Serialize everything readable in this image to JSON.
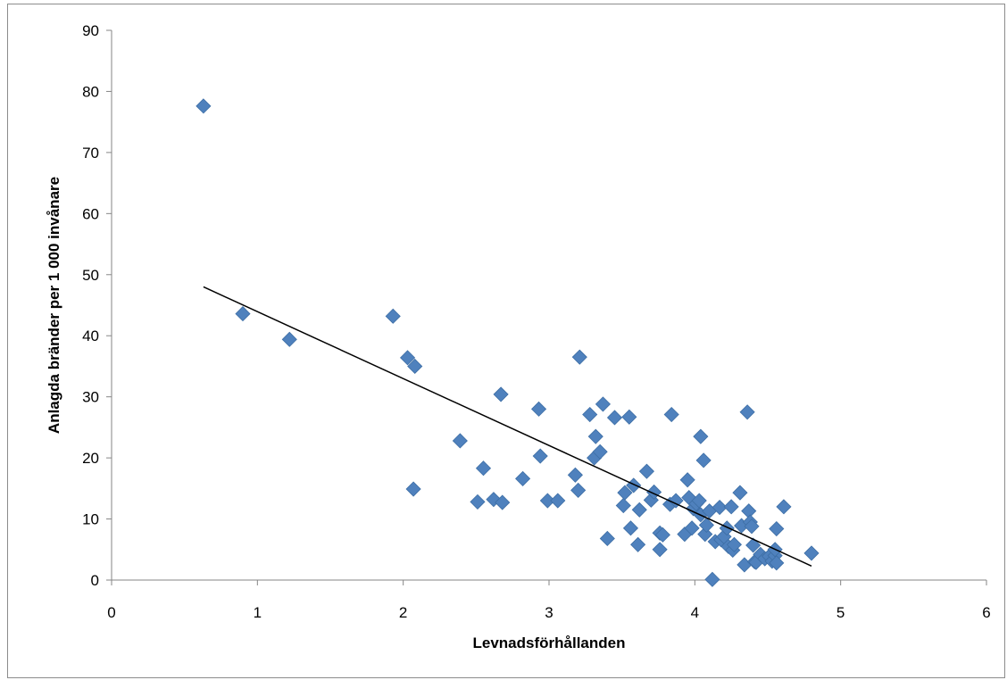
{
  "chart_data": {
    "type": "scatter",
    "title": "",
    "xlabel": "Levnadsförhållanden",
    "ylabel": "Anlagda bränder per 1 000 invånare",
    "xlim": [
      0,
      6
    ],
    "ylim": [
      0,
      90
    ],
    "x_ticks": [
      0,
      1,
      2,
      3,
      4,
      5,
      6
    ],
    "y_ticks": [
      0,
      10,
      20,
      30,
      40,
      50,
      60,
      70,
      80,
      90
    ],
    "grid": false,
    "legend": "none",
    "marker": "diamond",
    "marker_color": "#4f81bd",
    "trendline_color": "#000000",
    "trendline": {
      "type": "linear",
      "x": [
        0.63,
        4.8
      ],
      "y": [
        48.0,
        2.3
      ]
    },
    "series": [
      {
        "points": [
          [
            0.63,
            77.6
          ],
          [
            0.9,
            43.6
          ],
          [
            1.22,
            39.4
          ],
          [
            1.93,
            43.2
          ],
          [
            2.03,
            36.4
          ],
          [
            2.08,
            35.0
          ],
          [
            2.07,
            14.9
          ],
          [
            2.39,
            22.8
          ],
          [
            2.55,
            18.3
          ],
          [
            2.51,
            12.8
          ],
          [
            2.62,
            13.2
          ],
          [
            2.68,
            12.7
          ],
          [
            2.67,
            30.4
          ],
          [
            2.82,
            16.6
          ],
          [
            2.93,
            28.0
          ],
          [
            2.94,
            20.3
          ],
          [
            2.99,
            13.0
          ],
          [
            3.06,
            13.0
          ],
          [
            3.18,
            17.2
          ],
          [
            3.2,
            14.7
          ],
          [
            3.21,
            36.5
          ],
          [
            3.28,
            27.1
          ],
          [
            3.31,
            20.0
          ],
          [
            3.32,
            23.5
          ],
          [
            3.35,
            21.0
          ],
          [
            3.37,
            28.8
          ],
          [
            3.4,
            6.8
          ],
          [
            3.45,
            26.6
          ],
          [
            3.51,
            12.2
          ],
          [
            3.52,
            14.3
          ],
          [
            3.55,
            26.7
          ],
          [
            3.56,
            8.5
          ],
          [
            3.58,
            15.5
          ],
          [
            3.61,
            5.8
          ],
          [
            3.62,
            11.5
          ],
          [
            3.67,
            17.8
          ],
          [
            3.7,
            13.1
          ],
          [
            3.72,
            14.4
          ],
          [
            3.76,
            5.0
          ],
          [
            3.76,
            7.7
          ],
          [
            3.78,
            7.4
          ],
          [
            3.83,
            12.4
          ],
          [
            3.84,
            27.1
          ],
          [
            3.87,
            13.0
          ],
          [
            3.93,
            7.5
          ],
          [
            3.95,
            16.4
          ],
          [
            3.96,
            13.5
          ],
          [
            3.98,
            8.5
          ],
          [
            3.99,
            11.7
          ],
          [
            4.01,
            12.5
          ],
          [
            4.03,
            13.0
          ],
          [
            4.04,
            23.5
          ],
          [
            4.04,
            10.7
          ],
          [
            4.06,
            19.6
          ],
          [
            4.07,
            7.5
          ],
          [
            4.08,
            9.0
          ],
          [
            4.1,
            11.3
          ],
          [
            4.12,
            0.1
          ],
          [
            4.14,
            6.3
          ],
          [
            4.17,
            11.9
          ],
          [
            4.18,
            6.6
          ],
          [
            4.2,
            7.1
          ],
          [
            4.22,
            8.5
          ],
          [
            4.23,
            5.5
          ],
          [
            4.25,
            12.0
          ],
          [
            4.26,
            4.9
          ],
          [
            4.27,
            5.8
          ],
          [
            4.31,
            14.3
          ],
          [
            4.32,
            8.9
          ],
          [
            4.34,
            2.5
          ],
          [
            4.36,
            27.5
          ],
          [
            4.37,
            11.3
          ],
          [
            4.38,
            9.5
          ],
          [
            4.39,
            8.8
          ],
          [
            4.4,
            5.7
          ],
          [
            4.41,
            3.0
          ],
          [
            4.42,
            2.9
          ],
          [
            4.45,
            4.2
          ],
          [
            4.48,
            3.5
          ],
          [
            4.51,
            3.9
          ],
          [
            4.53,
            3.1
          ],
          [
            4.55,
            4.0
          ],
          [
            4.56,
            8.4
          ],
          [
            4.55,
            5.0
          ],
          [
            4.56,
            2.8
          ],
          [
            4.61,
            12.0
          ],
          [
            4.8,
            4.4
          ]
        ]
      }
    ]
  }
}
